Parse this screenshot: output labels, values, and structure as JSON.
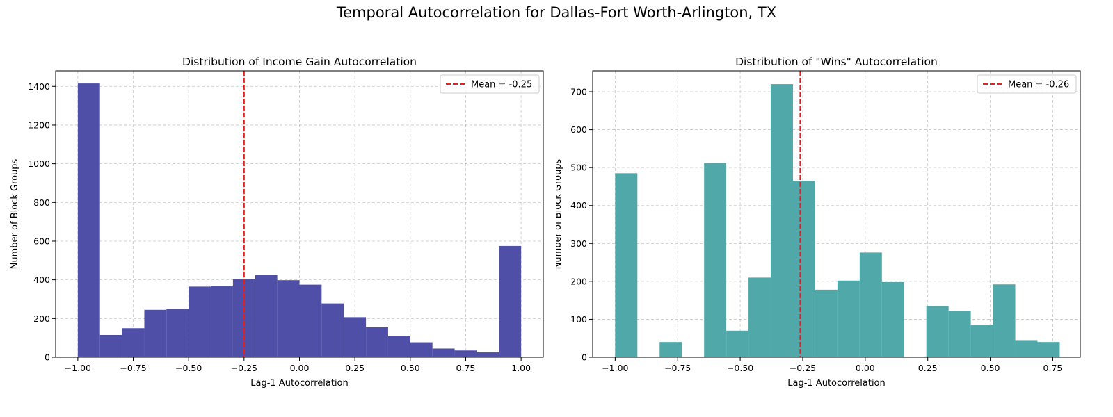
{
  "figure": {
    "title": "Temporal Autocorrelation for Dallas-Fort Worth-Arlington, TX"
  },
  "chart_data": [
    {
      "type": "bar",
      "histogram": true,
      "title": "Distribution of Income Gain Autocorrelation",
      "xlabel": "Lag-1 Autocorrelation",
      "ylabel": "Number of Block Groups",
      "color": "#4b4ba6",
      "xlim": [
        -1.1,
        1.1
      ],
      "ylim": [
        0,
        1480
      ],
      "xticks": [
        -1.0,
        -0.75,
        -0.5,
        -0.25,
        0.0,
        0.25,
        0.5,
        0.75,
        1.0
      ],
      "xtick_labels": [
        "−1.00",
        "−0.75",
        "−0.50",
        "−0.25",
        "0.00",
        "0.25",
        "0.50",
        "0.75",
        "1.00"
      ],
      "yticks": [
        0,
        200,
        400,
        600,
        800,
        1000,
        1200,
        1400
      ],
      "ytick_labels": [
        "0",
        "200",
        "400",
        "600",
        "800",
        "1000",
        "1200",
        "1400"
      ],
      "bin_edges": [
        -1.0,
        -0.9,
        -0.8,
        -0.7,
        -0.6,
        -0.5,
        -0.4,
        -0.3,
        -0.2,
        -0.1,
        0.0,
        0.1,
        0.2,
        0.3,
        0.4,
        0.5,
        0.6,
        0.7,
        0.8,
        0.9,
        1.0
      ],
      "values": [
        1415,
        115,
        150,
        245,
        250,
        365,
        370,
        405,
        425,
        398,
        375,
        278,
        207,
        155,
        108,
        77,
        45,
        35,
        25,
        575
      ],
      "mean": {
        "value": -0.25,
        "label": "Mean = -0.25",
        "color": "#e3221d"
      },
      "grid": true,
      "legend": "top-right"
    },
    {
      "type": "bar",
      "histogram": true,
      "title": "Distribution of \"Wins\" Autocorrelation",
      "xlabel": "Lag-1 Autocorrelation",
      "ylabel": "Number of Block Groups",
      "color": "#4ca6a6",
      "xlim": [
        -1.09,
        0.86
      ],
      "ylim": [
        0,
        755
      ],
      "xticks": [
        -1.0,
        -0.75,
        -0.5,
        -0.25,
        0.0,
        0.25,
        0.5,
        0.75
      ],
      "xtick_labels": [
        "−1.00",
        "−0.75",
        "−0.50",
        "−0.25",
        "0.00",
        "0.25",
        "0.50",
        "0.75"
      ],
      "yticks": [
        0,
        100,
        200,
        300,
        400,
        500,
        600,
        700
      ],
      "ytick_labels": [
        "0",
        "100",
        "200",
        "300",
        "400",
        "500",
        "600",
        "700"
      ],
      "bin_edges": [
        -1.0,
        -0.9111,
        -0.8222,
        -0.7333,
        -0.6444,
        -0.5556,
        -0.4667,
        -0.3778,
        -0.2889,
        -0.2,
        -0.1111,
        -0.0222,
        0.0667,
        0.1556,
        0.2444,
        0.3333,
        0.4222,
        0.5111,
        0.6,
        0.6889,
        0.7778
      ],
      "values": [
        485,
        0,
        40,
        0,
        512,
        70,
        210,
        720,
        465,
        178,
        202,
        276,
        198,
        0,
        135,
        122,
        86,
        192,
        45,
        40
      ],
      "mean": {
        "value": -0.26,
        "label": "Mean = -0.26",
        "color": "#e3221d"
      },
      "grid": true,
      "legend": "top-right"
    }
  ]
}
